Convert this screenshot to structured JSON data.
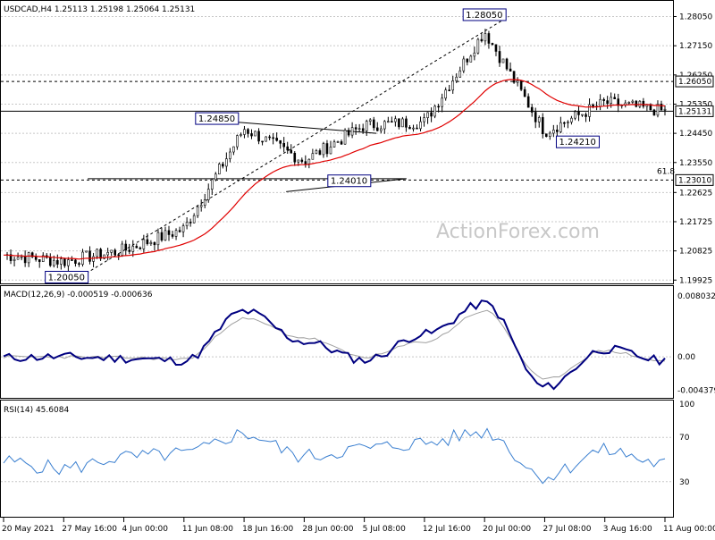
{
  "title": "USDCAD,H4  1.25113 1.25198 1.25064 1.25131",
  "watermark": "ActionForex.com",
  "colors": {
    "candles": "#000000",
    "ema": "#e00000",
    "macd": "#000080",
    "signal": "#a0a0a0",
    "rsi": "#3a7fd0",
    "box": "#000080"
  },
  "chart_data": [
    {
      "type": "line",
      "name": "USDCAD H4 candlestick (approx closes)",
      "title": "USDCAD,H4  1.25113 1.25198 1.25064 1.25131",
      "x": [
        "20 May 2021",
        "27 May 16:00",
        "4 Jun 00:00",
        "11 Jun 08:00",
        "18 Jun 16:00",
        "28 Jun 00:00",
        "5 Jul 08:00",
        "12 Jul 16:00",
        "20 Jul 00:00",
        "27 Jul 08:00",
        "3 Aug 16:00",
        "11 Aug 00:00"
      ],
      "series": [
        {
          "name": "",
          "values": [
            1.207,
            1.205,
            1.2085,
            1.215,
            1.246,
            1.236,
            1.247,
            1.248,
            1.276,
            1.245,
            1.254,
            1.2513
          ]
        }
      ],
      "ytick_labels": [
        "1.28050",
        "1.27150",
        "1.26250",
        "1.25350",
        "1.24450",
        "1.23550",
        "1.22625",
        "1.21725",
        "1.20825",
        "1.19925"
      ],
      "ylim": [
        1.1985,
        1.2845
      ],
      "horizontal_levels": [
        {
          "label": "1.26050",
          "value": 1.2605
        },
        {
          "label": "1.25131",
          "value": 1.25131
        },
        {
          "label": "1.23010",
          "value": 1.2301,
          "note": "61.8"
        }
      ],
      "annotations": [
        "1.28050",
        "1.24850",
        "1.24210",
        "1.24010",
        "1.20050",
        "61.8"
      ]
    },
    {
      "type": "line",
      "title": "MACD(12,26,9) -0.000519 -0.000636",
      "series": [
        {
          "name": "",
          "values": [
            -0.0001,
            0.0,
            -0.0002,
            -0.0005,
            0.006,
            0.002,
            -0.0004,
            0.003,
            0.007,
            -0.004,
            0.001,
            -0.0005
          ]
        },
        {
          "name": "",
          "values": [
            0.0,
            0.0,
            -0.0001,
            -0.0003,
            0.005,
            0.0025,
            0.0,
            0.002,
            0.006,
            -0.003,
            0.0008,
            -0.0006
          ]
        }
      ],
      "ytick_labels": [
        "0.008032",
        "0.00",
        "-0.004379"
      ],
      "ylim": [
        -0.0048,
        0.0086
      ]
    },
    {
      "type": "line",
      "title": "RSI(14) 45.6084",
      "series": [
        {
          "name": "",
          "values": [
            48,
            42,
            52,
            55,
            73,
            53,
            60,
            65,
            75,
            35,
            58,
            46
          ]
        }
      ],
      "ytick_labels": [
        "100",
        "70",
        "30",
        "0"
      ],
      "ylim": [
        0,
        100
      ]
    }
  ],
  "macd_title": "MACD(12,26,9) -0.000519 -0.000636",
  "rsi_title": "RSI(14) 45.6084"
}
